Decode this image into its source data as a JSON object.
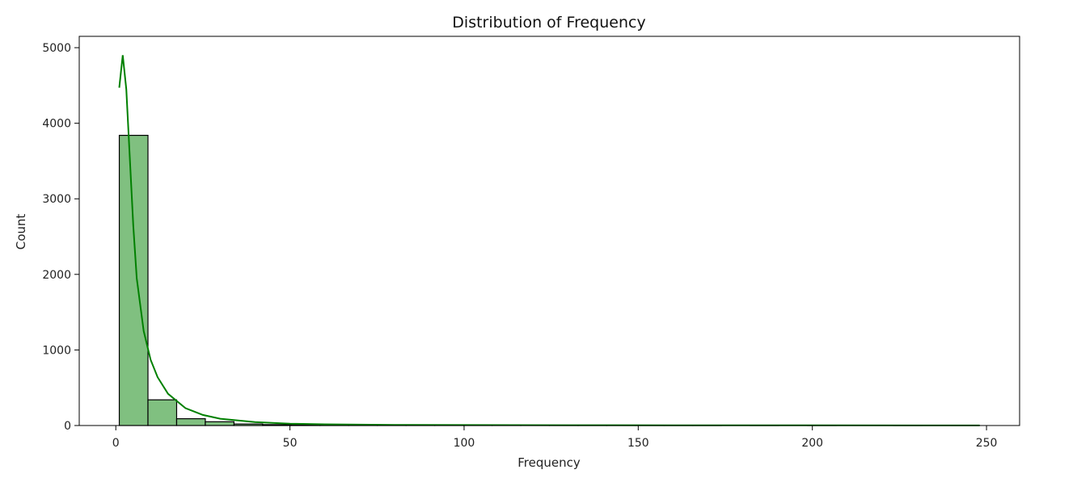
{
  "chart_data": {
    "type": "bar",
    "subtype": "histogram",
    "title": "Distribution of Frequency",
    "xlabel": "Frequency",
    "ylabel": "Count",
    "xlim": [
      -10.5,
      259.5
    ],
    "ylim": [
      0,
      5150
    ],
    "xticks": [
      0,
      50,
      100,
      150,
      200,
      250
    ],
    "yticks": [
      0,
      1000,
      2000,
      3000,
      4000,
      5000
    ],
    "grid": false,
    "legend": "none",
    "bins": {
      "edges": [
        1,
        9.233,
        17.467,
        25.7,
        33.933,
        42.167,
        50.4,
        58.633,
        66.867,
        75.1,
        83.333,
        91.567,
        99.8,
        108.033,
        116.267,
        124.5,
        132.733,
        140.967,
        149.2,
        157.433,
        165.667,
        173.9,
        182.133,
        190.367,
        198.6,
        206.833,
        215.067,
        223.3,
        231.533,
        239.767,
        248
      ],
      "counts": [
        3840,
        340,
        90,
        50,
        20,
        12,
        8,
        5,
        4,
        4,
        3,
        2,
        2,
        1,
        2,
        1,
        1,
        1,
        1,
        1,
        1,
        0,
        1,
        0,
        1,
        0,
        0,
        1,
        0,
        1
      ]
    },
    "kde": {
      "x": [
        1,
        2,
        3,
        4,
        5,
        6,
        8,
        10,
        12,
        15,
        20,
        25,
        30,
        40,
        50,
        60,
        80,
        100,
        130,
        160,
        200,
        248
      ],
      "y": [
        4470,
        4900,
        4450,
        3550,
        2650,
        1950,
        1250,
        870,
        640,
        420,
        230,
        140,
        90,
        45,
        25,
        16,
        9,
        6,
        4,
        3,
        2,
        1
      ]
    },
    "colors": {
      "bar_fill": "#80c080",
      "bar_edge": "#000000",
      "kde_line": "#008000"
    }
  }
}
